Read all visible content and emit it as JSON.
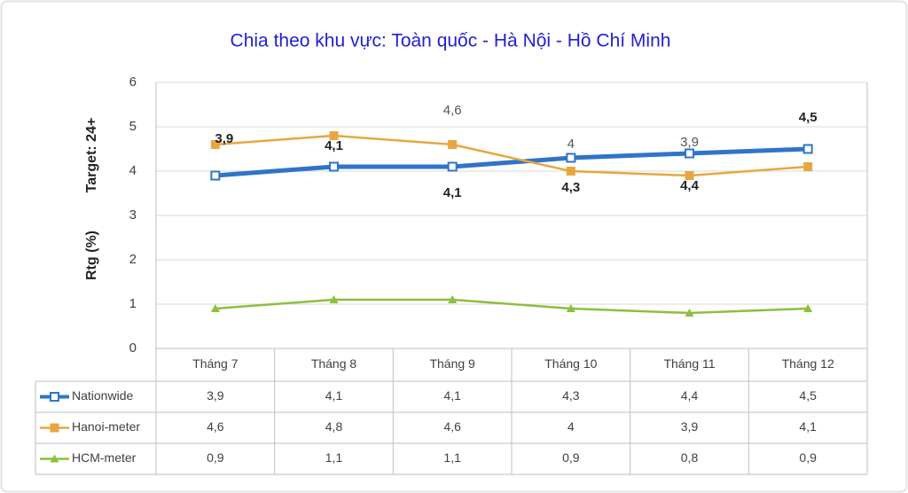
{
  "chart_data": {
    "type": "line",
    "title": "Chia theo khu vực: Toàn quốc - Hà Nội - Hồ Chí Minh",
    "y_label": "Rtg (%)",
    "y_label_2": "Target: 24+",
    "categories": [
      "Tháng 7",
      "Tháng 8",
      "Tháng 9",
      "Tháng 10",
      "Tháng 11",
      "Tháng 12"
    ],
    "series": [
      {
        "name": "Nationwide",
        "color": "#2e75c8",
        "marker": "hollow-square",
        "values": [
          3.9,
          4.1,
          4.1,
          4.3,
          4.4,
          4.5
        ],
        "value_labels": [
          "3,9",
          "4,1",
          "4,1",
          "4,3",
          "4,4",
          "4,5"
        ]
      },
      {
        "name": "Hanoi-meter",
        "color": "#e8a640",
        "marker": "square",
        "values": [
          4.6,
          4.8,
          4.6,
          4,
          3.9,
          4.1
        ],
        "value_labels": [
          "4,6",
          "4,8",
          "4,6",
          "4",
          "3,9",
          "4,1"
        ]
      },
      {
        "name": "HCM-meter",
        "color": "#8cbf3f",
        "marker": "triangle",
        "values": [
          0.9,
          1.1,
          1.1,
          0.9,
          0.8,
          0.9
        ],
        "value_labels": [
          "0,9",
          "1,1",
          "1,1",
          "0,9",
          "0,8",
          "0,9"
        ]
      }
    ],
    "ylim": [
      0,
      6
    ],
    "yticks": [
      0,
      1,
      2,
      3,
      4,
      5,
      6
    ],
    "grid": true,
    "data_table": true
  }
}
